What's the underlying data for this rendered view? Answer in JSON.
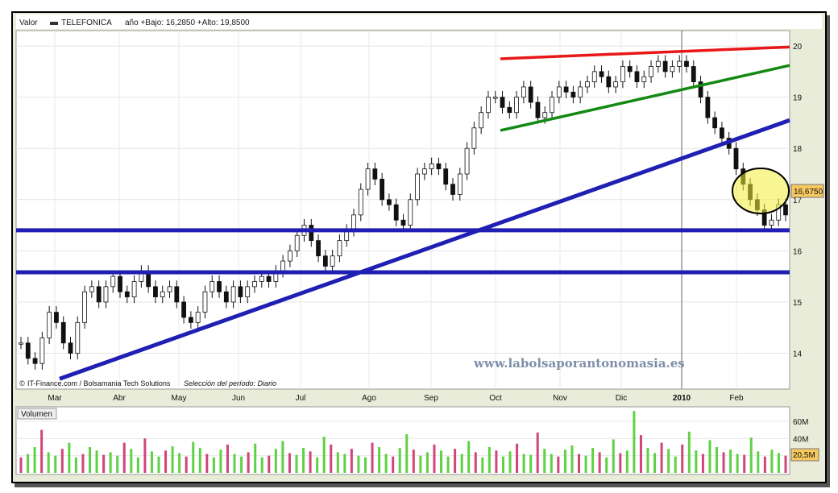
{
  "chart_data": [
    {
      "type": "candlestick",
      "header": {
        "label": "Valor",
        "series_name": "TELEFONICA",
        "stats": "año +Bajo: 16,2850 +Alto: 19,8500"
      },
      "footer": {
        "source": "IT-Finance.com / Bolsamania Tech Solutions",
        "period": "Selección del período: Diario"
      },
      "watermark": "www.labolsaporantonomasia.es",
      "x_months": [
        "Mar",
        "Abr",
        "May",
        "Jun",
        "Jul",
        "Ago",
        "Sep",
        "Oct",
        "Nov",
        "Dic",
        "2010",
        "Feb"
      ],
      "y_ticks": [
        14,
        15,
        16,
        17,
        18,
        19,
        20
      ],
      "y_range": [
        13.3,
        20.3
      ],
      "last_price_label": "16,6750",
      "last_price": 16.675,
      "closes": [
        14.2,
        13.9,
        13.8,
        14.3,
        14.8,
        14.6,
        14.2,
        14.0,
        14.6,
        15.2,
        15.3,
        15.0,
        15.3,
        15.5,
        15.2,
        15.1,
        15.4,
        15.6,
        15.3,
        15.1,
        15.2,
        15.3,
        15.0,
        14.7,
        14.6,
        14.8,
        15.2,
        15.4,
        15.2,
        15.0,
        15.3,
        15.1,
        15.3,
        15.4,
        15.5,
        15.4,
        15.6,
        15.8,
        16.0,
        16.3,
        16.5,
        16.2,
        15.9,
        15.7,
        15.9,
        16.2,
        16.4,
        16.7,
        17.2,
        17.6,
        17.4,
        17.0,
        16.9,
        16.6,
        16.5,
        17.0,
        17.5,
        17.6,
        17.7,
        17.6,
        17.3,
        17.1,
        17.5,
        18.0,
        18.4,
        18.7,
        19.0,
        19.0,
        18.8,
        18.7,
        19.0,
        19.2,
        18.9,
        18.6,
        18.7,
        19.0,
        19.2,
        19.1,
        19.0,
        19.2,
        19.3,
        19.5,
        19.4,
        19.2,
        19.3,
        19.6,
        19.5,
        19.3,
        19.4,
        19.6,
        19.7,
        19.5,
        19.6,
        19.7,
        19.6,
        19.3,
        19.0,
        18.6,
        18.4,
        18.2,
        18.0,
        17.6,
        17.3,
        17.0,
        16.8,
        16.5,
        16.6,
        16.9,
        16.7
      ],
      "trendlines": [
        {
          "color": "#e81818",
          "from": [
            "Oct",
            19.75
          ],
          "to": [
            "end",
            19.98
          ]
        },
        {
          "color": "#138a13",
          "from": [
            "Oct",
            18.35
          ],
          "to": [
            "end",
            19.62
          ]
        },
        {
          "color": "#1f1fb4",
          "from": [
            "Mar",
            13.5
          ],
          "to": [
            "end",
            18.55
          ]
        },
        {
          "color": "#1f1fb4",
          "from": [
            "start",
            16.4
          ],
          "to": [
            "end",
            16.4
          ]
        },
        {
          "color": "#1f1fb4",
          "from": [
            "start",
            15.58
          ],
          "to": [
            "end",
            15.58
          ]
        }
      ]
    },
    {
      "type": "bar",
      "title": "Volumen",
      "y_ticks": [
        "20M",
        "40M",
        "60M"
      ],
      "last_label": "20,5M",
      "values": [
        18,
        22,
        30,
        50,
        24,
        20,
        28,
        35,
        18,
        22,
        30,
        26,
        21,
        24,
        20,
        35,
        28,
        18,
        40,
        25,
        19,
        26,
        31,
        23,
        19,
        36,
        29,
        22,
        18,
        27,
        33,
        22,
        19,
        24,
        34,
        18,
        20,
        28,
        37,
        23,
        21,
        29,
        25,
        18,
        42,
        33,
        24,
        22,
        28,
        20,
        18,
        35,
        30,
        22,
        19,
        29,
        45,
        27,
        20,
        24,
        33,
        26,
        19,
        28,
        22,
        37,
        24,
        18,
        30,
        26,
        19,
        25,
        34,
        22,
        21,
        47,
        28,
        22,
        19,
        27,
        32,
        22,
        20,
        29,
        24,
        18,
        39,
        23,
        26,
        72,
        44,
        29,
        23,
        35,
        28,
        19,
        33,
        48,
        26,
        22,
        38,
        30,
        24,
        27,
        22,
        21,
        41,
        25,
        19,
        27,
        23,
        20
      ]
    }
  ]
}
